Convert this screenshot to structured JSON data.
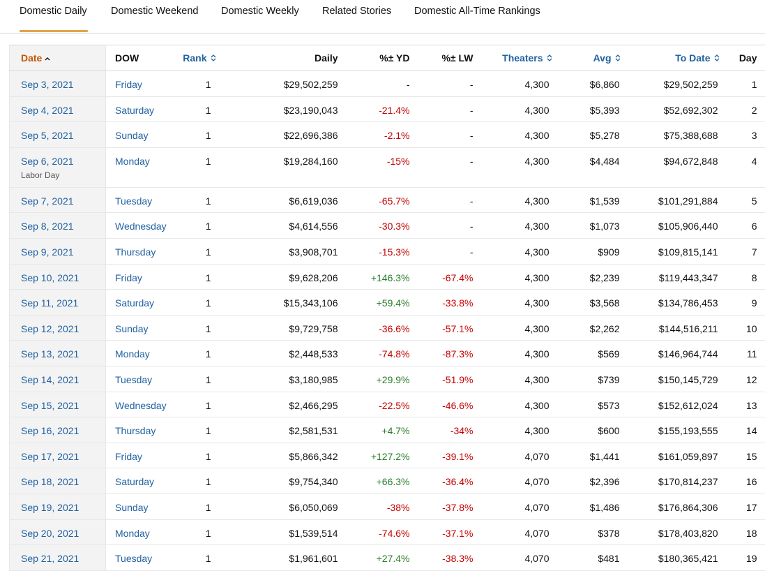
{
  "tabs": [
    {
      "label": "Domestic Daily",
      "active": true
    },
    {
      "label": "Domestic Weekend",
      "active": false
    },
    {
      "label": "Domestic Weekly",
      "active": false
    },
    {
      "label": "Related Stories",
      "active": false
    },
    {
      "label": "Domestic All-Time Rankings",
      "active": false
    }
  ],
  "colors": {
    "accent": "#e3a44c",
    "link": "#2162a1",
    "date_header": "#c45500",
    "negative": "#c40000",
    "positive": "#287d28"
  },
  "table": {
    "headers": {
      "date": "Date",
      "dow": "DOW",
      "rank": "Rank",
      "daily": "Daily",
      "yd": "%± YD",
      "lw": "%± LW",
      "theaters": "Theaters",
      "avg": "Avg",
      "todate": "To Date",
      "day": "Day"
    },
    "sort_icons": {
      "date": "chevron-up-icon",
      "rank": "sort-both-icon",
      "theaters": "sort-both-icon",
      "avg": "sort-both-icon",
      "todate": "sort-both-icon"
    },
    "rows": [
      {
        "date": "Sep 3, 2021",
        "note": "",
        "dow": "Friday",
        "rank": "1",
        "daily": "$29,502,259",
        "yd": "-",
        "lw": "-",
        "theaters": "4,300",
        "avg": "$6,860",
        "todate": "$29,502,259",
        "day": "1"
      },
      {
        "date": "Sep 4, 2021",
        "note": "",
        "dow": "Saturday",
        "rank": "1",
        "daily": "$23,190,043",
        "yd": "-21.4%",
        "lw": "-",
        "theaters": "4,300",
        "avg": "$5,393",
        "todate": "$52,692,302",
        "day": "2"
      },
      {
        "date": "Sep 5, 2021",
        "note": "",
        "dow": "Sunday",
        "rank": "1",
        "daily": "$22,696,386",
        "yd": "-2.1%",
        "lw": "-",
        "theaters": "4,300",
        "avg": "$5,278",
        "todate": "$75,388,688",
        "day": "3"
      },
      {
        "date": "Sep 6, 2021",
        "note": "Labor Day",
        "dow": "Monday",
        "rank": "1",
        "daily": "$19,284,160",
        "yd": "-15%",
        "lw": "-",
        "theaters": "4,300",
        "avg": "$4,484",
        "todate": "$94,672,848",
        "day": "4"
      },
      {
        "date": "Sep 7, 2021",
        "note": "",
        "dow": "Tuesday",
        "rank": "1",
        "daily": "$6,619,036",
        "yd": "-65.7%",
        "lw": "-",
        "theaters": "4,300",
        "avg": "$1,539",
        "todate": "$101,291,884",
        "day": "5"
      },
      {
        "date": "Sep 8, 2021",
        "note": "",
        "dow": "Wednesday",
        "rank": "1",
        "daily": "$4,614,556",
        "yd": "-30.3%",
        "lw": "-",
        "theaters": "4,300",
        "avg": "$1,073",
        "todate": "$105,906,440",
        "day": "6"
      },
      {
        "date": "Sep 9, 2021",
        "note": "",
        "dow": "Thursday",
        "rank": "1",
        "daily": "$3,908,701",
        "yd": "-15.3%",
        "lw": "-",
        "theaters": "4,300",
        "avg": "$909",
        "todate": "$109,815,141",
        "day": "7"
      },
      {
        "date": "Sep 10, 2021",
        "note": "",
        "dow": "Friday",
        "rank": "1",
        "daily": "$9,628,206",
        "yd": "+146.3%",
        "lw": "-67.4%",
        "theaters": "4,300",
        "avg": "$2,239",
        "todate": "$119,443,347",
        "day": "8"
      },
      {
        "date": "Sep 11, 2021",
        "note": "",
        "dow": "Saturday",
        "rank": "1",
        "daily": "$15,343,106",
        "yd": "+59.4%",
        "lw": "-33.8%",
        "theaters": "4,300",
        "avg": "$3,568",
        "todate": "$134,786,453",
        "day": "9"
      },
      {
        "date": "Sep 12, 2021",
        "note": "",
        "dow": "Sunday",
        "rank": "1",
        "daily": "$9,729,758",
        "yd": "-36.6%",
        "lw": "-57.1%",
        "theaters": "4,300",
        "avg": "$2,262",
        "todate": "$144,516,211",
        "day": "10"
      },
      {
        "date": "Sep 13, 2021",
        "note": "",
        "dow": "Monday",
        "rank": "1",
        "daily": "$2,448,533",
        "yd": "-74.8%",
        "lw": "-87.3%",
        "theaters": "4,300",
        "avg": "$569",
        "todate": "$146,964,744",
        "day": "11"
      },
      {
        "date": "Sep 14, 2021",
        "note": "",
        "dow": "Tuesday",
        "rank": "1",
        "daily": "$3,180,985",
        "yd": "+29.9%",
        "lw": "-51.9%",
        "theaters": "4,300",
        "avg": "$739",
        "todate": "$150,145,729",
        "day": "12"
      },
      {
        "date": "Sep 15, 2021",
        "note": "",
        "dow": "Wednesday",
        "rank": "1",
        "daily": "$2,466,295",
        "yd": "-22.5%",
        "lw": "-46.6%",
        "theaters": "4,300",
        "avg": "$573",
        "todate": "$152,612,024",
        "day": "13"
      },
      {
        "date": "Sep 16, 2021",
        "note": "",
        "dow": "Thursday",
        "rank": "1",
        "daily": "$2,581,531",
        "yd": "+4.7%",
        "lw": "-34%",
        "theaters": "4,300",
        "avg": "$600",
        "todate": "$155,193,555",
        "day": "14"
      },
      {
        "date": "Sep 17, 2021",
        "note": "",
        "dow": "Friday",
        "rank": "1",
        "daily": "$5,866,342",
        "yd": "+127.2%",
        "lw": "-39.1%",
        "theaters": "4,070",
        "avg": "$1,441",
        "todate": "$161,059,897",
        "day": "15"
      },
      {
        "date": "Sep 18, 2021",
        "note": "",
        "dow": "Saturday",
        "rank": "1",
        "daily": "$9,754,340",
        "yd": "+66.3%",
        "lw": "-36.4%",
        "theaters": "4,070",
        "avg": "$2,396",
        "todate": "$170,814,237",
        "day": "16"
      },
      {
        "date": "Sep 19, 2021",
        "note": "",
        "dow": "Sunday",
        "rank": "1",
        "daily": "$6,050,069",
        "yd": "-38%",
        "lw": "-37.8%",
        "theaters": "4,070",
        "avg": "$1,486",
        "todate": "$176,864,306",
        "day": "17"
      },
      {
        "date": "Sep 20, 2021",
        "note": "",
        "dow": "Monday",
        "rank": "1",
        "daily": "$1,539,514",
        "yd": "-74.6%",
        "lw": "-37.1%",
        "theaters": "4,070",
        "avg": "$378",
        "todate": "$178,403,820",
        "day": "18"
      },
      {
        "date": "Sep 21, 2021",
        "note": "",
        "dow": "Tuesday",
        "rank": "1",
        "daily": "$1,961,601",
        "yd": "+27.4%",
        "lw": "-38.3%",
        "theaters": "4,070",
        "avg": "$481",
        "todate": "$180,365,421",
        "day": "19"
      }
    ]
  }
}
